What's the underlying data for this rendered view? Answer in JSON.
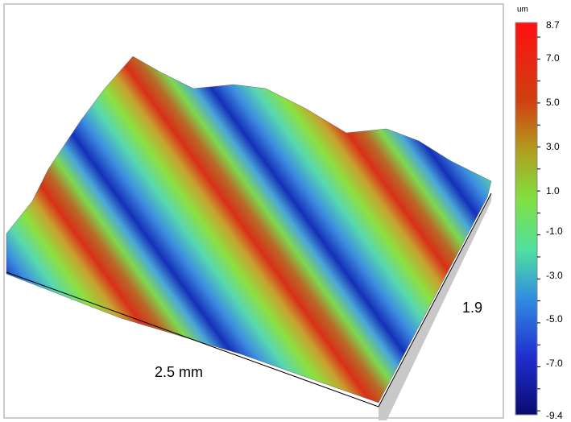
{
  "colorbar": {
    "unit": "um",
    "labels": [
      "8.7",
      "7.0",
      "5.0",
      "3.0",
      "1.0",
      "-1.0",
      "-3.0",
      "-5.0",
      "-7.0",
      "-9.4"
    ]
  },
  "dimensions": {
    "length": "2.5 mm",
    "width": "1.9"
  }
}
